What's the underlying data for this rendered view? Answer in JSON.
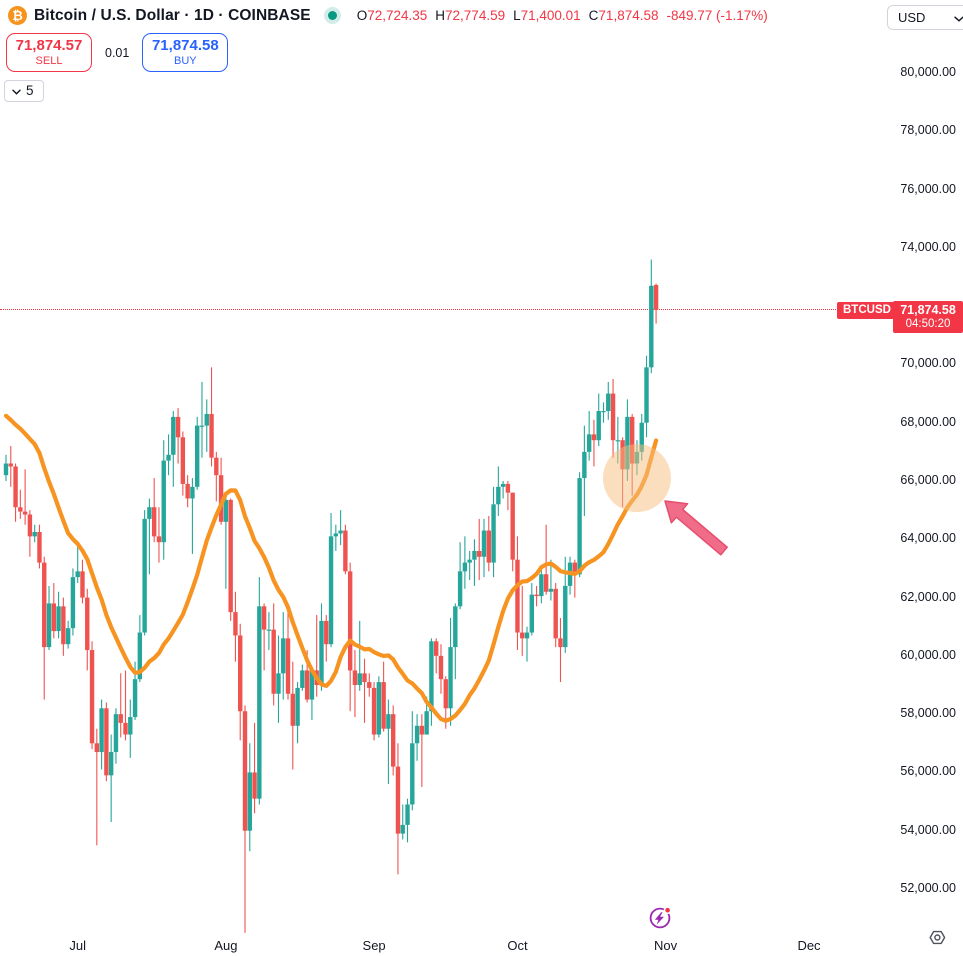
{
  "header": {
    "symbol_title": "Bitcoin / U.S. Dollar · 1D · COINBASE",
    "logo_glyph": "₿",
    "ohlc": {
      "o_label": "O",
      "o": "72,724.35",
      "h_label": "H",
      "h": "72,774.59",
      "l_label": "L",
      "l": "71,400.01",
      "c_label": "C",
      "c": "71,874.58",
      "change": "-849.77 (-1.17%)"
    },
    "currency": "USD"
  },
  "trade_panel": {
    "sell_price": "71,874.57",
    "sell_label": "SELL",
    "spread": "0.01",
    "buy_price": "71,874.58",
    "buy_label": "BUY",
    "interval_value": "5"
  },
  "price_label": {
    "symbol": "BTCUSD",
    "price": "71,874.58",
    "countdown": "04:50:20"
  },
  "colors": {
    "red": "#f23645",
    "blue": "#2962ff",
    "bitcoin_orange": "#f7931a",
    "green_dot": "#089981",
    "axis_text": "#131722",
    "event_purple": "#9c27b0"
  },
  "chart_data": {
    "type": "candlestick",
    "symbol": "BTCUSD",
    "exchange": "COINBASE",
    "interval": "1D",
    "last_price": 71874.58,
    "grid": false,
    "y_axis": {
      "min": 50500,
      "max": 80600,
      "ticks": [
        80000,
        78000,
        76000,
        74000,
        70000,
        68000,
        66000,
        64000,
        62000,
        60000,
        58000,
        56000,
        54000,
        52000
      ],
      "tick_labels": [
        "80,000.00",
        "78,000.00",
        "76,000.00",
        "74,000.00",
        "70,000.00",
        "68,000.00",
        "66,000.00",
        "64,000.00",
        "62,000.00",
        "60,000.00",
        "58,000.00",
        "56,000.00",
        "54,000.00",
        "52,000.00"
      ]
    },
    "x_axis": {
      "ticks": [
        {
          "label": "Jul",
          "index": 15
        },
        {
          "label": "Aug",
          "index": 46
        },
        {
          "label": "Sep",
          "index": 77
        },
        {
          "label": "Oct",
          "index": 107
        },
        {
          "label": "Nov",
          "index": 138
        },
        {
          "label": "Dec",
          "index": 168
        }
      ]
    },
    "series_colors": {
      "up": "#26a69a",
      "down": "#ef5350",
      "ma": "#f79421"
    },
    "ma": {
      "period": 20,
      "seed_closes": [
        68400,
        69400,
        68350,
        67650,
        68300,
        67750,
        67800,
        69300,
        70600,
        71100,
        69300,
        71100,
        69500,
        69300,
        66800,
        66200,
        66700,
        66100,
        66500,
        66400
      ]
    },
    "start_date": "2024-06-16",
    "candles": [
      [
        66200,
        66900,
        66000,
        66600
      ],
      [
        66600,
        67200,
        65800,
        66500
      ],
      [
        66500,
        66600,
        64600,
        65100
      ],
      [
        65100,
        65700,
        64700,
        64950
      ],
      [
        64950,
        66400,
        64500,
        64850
      ],
      [
        64850,
        65000,
        63400,
        64100
      ],
      [
        64100,
        64500,
        63900,
        64250
      ],
      [
        64250,
        64500,
        63000,
        63200
      ],
      [
        63200,
        63400,
        58500,
        60300
      ],
      [
        60300,
        62400,
        60200,
        61800
      ],
      [
        61800,
        62500,
        60600,
        60850
      ],
      [
        60850,
        62200,
        60600,
        61700
      ],
      [
        61700,
        62000,
        60000,
        60400
      ],
      [
        60400,
        61200,
        60250,
        60950
      ],
      [
        60950,
        63000,
        60700,
        62700
      ],
      [
        62700,
        63800,
        62500,
        62900
      ],
      [
        62900,
        63300,
        61800,
        62000
      ],
      [
        62000,
        62300,
        59500,
        60200
      ],
      [
        60200,
        60500,
        56800,
        57000
      ],
      [
        57000,
        57500,
        53500,
        56700
      ],
      [
        56700,
        58500,
        56100,
        58200
      ],
      [
        58200,
        58400,
        55700,
        55900
      ],
      [
        55900,
        57300,
        54300,
        56700
      ],
      [
        56700,
        58200,
        56300,
        58000
      ],
      [
        58000,
        59400,
        57200,
        57700
      ],
      [
        57700,
        59500,
        57100,
        57300
      ],
      [
        57300,
        58500,
        56500,
        57900
      ],
      [
        57900,
        59800,
        57800,
        59200
      ],
      [
        59200,
        61400,
        59100,
        60800
      ],
      [
        60800,
        65000,
        60700,
        64700
      ],
      [
        64700,
        65400,
        62800,
        65100
      ],
      [
        65100,
        66100,
        63900,
        64100
      ],
      [
        64100,
        65100,
        63200,
        63900
      ],
      [
        63900,
        67400,
        63300,
        66700
      ],
      [
        66700,
        67600,
        66200,
        66900
      ],
      [
        66900,
        68400,
        65800,
        68200
      ],
      [
        68200,
        68500,
        66600,
        67500
      ],
      [
        67500,
        67700,
        65500,
        65900
      ],
      [
        65900,
        66200,
        65100,
        65400
      ],
      [
        65400,
        66100,
        63500,
        65800
      ],
      [
        65800,
        68200,
        65700,
        67900
      ],
      [
        67900,
        69400,
        66800,
        67900
      ],
      [
        67900,
        68800,
        67000,
        68300
      ],
      [
        68300,
        69900,
        66500,
        66800
      ],
      [
        66800,
        67000,
        65300,
        66200
      ],
      [
        66200,
        66800,
        64500,
        64600
      ],
      [
        64600,
        65600,
        62300,
        65350
      ],
      [
        65350,
        65400,
        61200,
        61500
      ],
      [
        61500,
        62200,
        59800,
        60700
      ],
      [
        60700,
        61100,
        57100,
        58100
      ],
      [
        58100,
        58300,
        50500,
        54000
      ],
      [
        54000,
        57000,
        53300,
        56000
      ],
      [
        56000,
        57700,
        54600,
        55100
      ],
      [
        55100,
        62700,
        54900,
        61700
      ],
      [
        61700,
        61800,
        59500,
        60900
      ],
      [
        60900,
        61500,
        60200,
        60900
      ],
      [
        60900,
        61800,
        58300,
        58700
      ],
      [
        58700,
        60700,
        57700,
        59400
      ],
      [
        59400,
        61500,
        58500,
        60600
      ],
      [
        60600,
        61800,
        58500,
        58700
      ],
      [
        58700,
        59800,
        56100,
        57600
      ],
      [
        57600,
        59100,
        57000,
        58900
      ],
      [
        58900,
        59700,
        58800,
        59500
      ],
      [
        59500,
        60200,
        58400,
        58500
      ],
      [
        58500,
        59600,
        57800,
        59500
      ],
      [
        59500,
        61400,
        58600,
        59000
      ],
      [
        59000,
        61800,
        58800,
        61200
      ],
      [
        61200,
        61400,
        59800,
        60400
      ],
      [
        60400,
        64900,
        60300,
        64100
      ],
      [
        64100,
        64500,
        63600,
        64200
      ],
      [
        64200,
        65000,
        63800,
        64300
      ],
      [
        64300,
        64500,
        62800,
        62900
      ],
      [
        62900,
        63200,
        58100,
        59500
      ],
      [
        59500,
        60200,
        57900,
        59000
      ],
      [
        59000,
        61200,
        58800,
        59400
      ],
      [
        59400,
        59900,
        57700,
        59100
      ],
      [
        59100,
        59400,
        58600,
        58900
      ],
      [
        58900,
        59100,
        57100,
        57300
      ],
      [
        57300,
        59300,
        57200,
        59100
      ],
      [
        59100,
        59800,
        57400,
        57500
      ],
      [
        57500,
        58500,
        55600,
        58000
      ],
      [
        58000,
        58300,
        55900,
        56200
      ],
      [
        56200,
        57000,
        52500,
        53900
      ],
      [
        53900,
        54900,
        53700,
        54200
      ],
      [
        54200,
        55100,
        53600,
        54900
      ],
      [
        54900,
        58100,
        54700,
        57000
      ],
      [
        57000,
        58000,
        56400,
        57600
      ],
      [
        57600,
        58000,
        55500,
        57300
      ],
      [
        57300,
        58600,
        57300,
        58100
      ],
      [
        58100,
        60600,
        57600,
        60500
      ],
      [
        60500,
        60600,
        59400,
        60000
      ],
      [
        60000,
        60400,
        58700,
        59200
      ],
      [
        59200,
        59300,
        57500,
        58200
      ],
      [
        58200,
        61300,
        57600,
        60300
      ],
      [
        60300,
        61800,
        59200,
        61700
      ],
      [
        61700,
        63900,
        61600,
        62900
      ],
      [
        62900,
        64100,
        62300,
        63200
      ],
      [
        63200,
        63600,
        62600,
        63300
      ],
      [
        63300,
        64000,
        62400,
        63600
      ],
      [
        63600,
        64700,
        62600,
        63400
      ],
      [
        63400,
        64700,
        62700,
        64300
      ],
      [
        64300,
        64800,
        62900,
        63200
      ],
      [
        63200,
        65800,
        62700,
        65200
      ],
      [
        65200,
        66500,
        64800,
        65800
      ],
      [
        65800,
        66000,
        65400,
        65900
      ],
      [
        65900,
        66000,
        65000,
        65600
      ],
      [
        65600,
        65600,
        62900,
        63300
      ],
      [
        63300,
        64100,
        60200,
        60800
      ],
      [
        60800,
        62400,
        60000,
        60600
      ],
      [
        60600,
        61000,
        59800,
        60800
      ],
      [
        60800,
        62500,
        60700,
        62100
      ],
      [
        62100,
        62400,
        61700,
        62050
      ],
      [
        62050,
        63000,
        61800,
        62800
      ],
      [
        62800,
        64500,
        62100,
        62200
      ],
      [
        62200,
        63300,
        61900,
        62300
      ],
      [
        62300,
        62500,
        60300,
        60600
      ],
      [
        60600,
        61300,
        59100,
        60300
      ],
      [
        60300,
        63400,
        60100,
        62400
      ],
      [
        62400,
        63400,
        62100,
        63200
      ],
      [
        63200,
        63300,
        62000,
        62800
      ],
      [
        62800,
        66300,
        62700,
        66100
      ],
      [
        66100,
        67900,
        64800,
        67000
      ],
      [
        67000,
        68400,
        66700,
        67600
      ],
      [
        67600,
        68100,
        66500,
        67400
      ],
      [
        67400,
        69000,
        67200,
        68400
      ],
      [
        68400,
        68700,
        68000,
        68400
      ],
      [
        68400,
        69400,
        68100,
        69000
      ],
      [
        69000,
        69500,
        66800,
        67400
      ],
      [
        67400,
        68200,
        66600,
        67400
      ],
      [
        67400,
        67500,
        65100,
        66400
      ],
      [
        66400,
        68800,
        66000,
        68200
      ],
      [
        68200,
        68300,
        65500,
        66600
      ],
      [
        66600,
        67400,
        66200,
        67000
      ],
      [
        67000,
        68300,
        66700,
        68000
      ],
      [
        68000,
        70300,
        67500,
        69900
      ],
      [
        69900,
        73600,
        69700,
        72700
      ],
      [
        72724.35,
        72774.59,
        71400.01,
        71874.58
      ]
    ],
    "annotations": {
      "highlight_circle": {
        "index": 132,
        "price": 66100,
        "radius": 34,
        "color": "#f6bd7d",
        "opacity": 0.5
      },
      "arrow": {
        "tip": [
          665,
          501
        ],
        "tail": [
          724,
          551
        ],
        "shaft_half_width": 5,
        "head_half_width": 12.5,
        "head_length": 19,
        "color": "#ef607f",
        "stroke": "#e64e6e",
        "opacity": 0.92
      }
    }
  }
}
